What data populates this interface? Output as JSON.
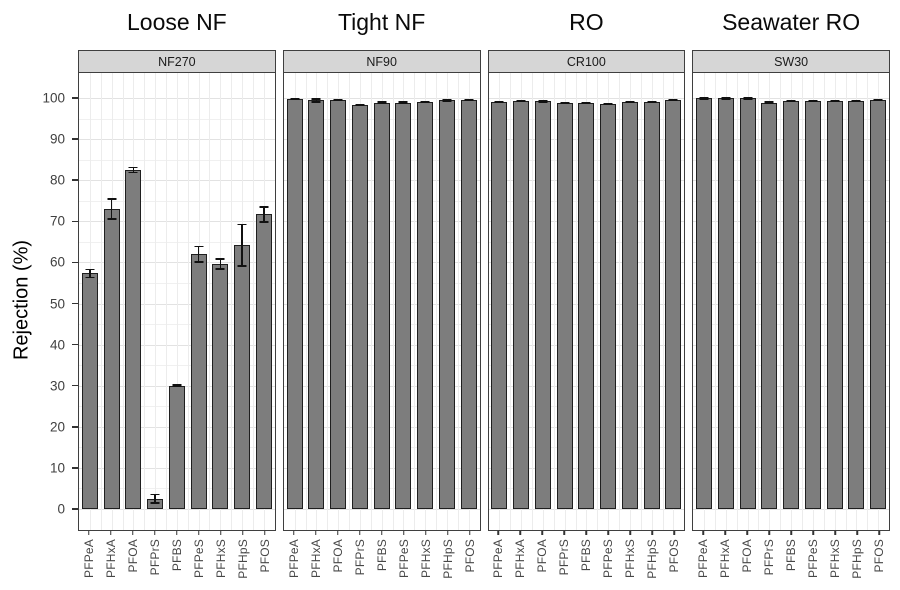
{
  "figure": {
    "y_axis_label": "Rejection (%)",
    "colors": {
      "bar_fill": "#7d7d7d",
      "bar_stroke": "#1f1f1f",
      "strip_bg": "#d6d6d6",
      "panel_border": "#3f3f3f",
      "grid_major": "#e2e2e2",
      "grid_minor": "#f0f0f0"
    }
  },
  "chart_data": {
    "type": "bar",
    "title": "",
    "xlabel": "",
    "ylabel": "Rejection (%)",
    "ylim": [
      0,
      100
    ],
    "yticks": [
      0,
      10,
      20,
      30,
      40,
      50,
      60,
      70,
      80,
      90,
      100
    ],
    "grid": "major+minor",
    "legend": "none",
    "error_bars": true,
    "categories": [
      "PFPeA",
      "PFHxA",
      "PFOA",
      "PFPrS",
      "PFBS",
      "PFPeS",
      "PFHxS",
      "PFHpS",
      "PFOS"
    ],
    "panels": [
      {
        "title": "Loose NF",
        "strip": "NF270",
        "values": [
          57.3,
          73.0,
          82.5,
          2.5,
          30.0,
          62.0,
          59.6,
          64.2,
          71.7
        ],
        "errors": [
          1.2,
          2.6,
          0.8,
          1.2,
          0.4,
          2.1,
          1.4,
          5.2,
          2.0
        ]
      },
      {
        "title": "Tight NF",
        "strip": "NF90",
        "values": [
          99.8,
          99.4,
          99.5,
          98.3,
          98.9,
          98.9,
          99.1,
          99.4,
          99.5
        ],
        "errors": [
          0.1,
          0.5,
          0.3,
          0.3,
          0.1,
          0.1,
          0.1,
          0.3,
          0.1
        ]
      },
      {
        "title": "RO",
        "strip": "CR100",
        "values": [
          99.0,
          99.2,
          99.2,
          98.7,
          98.8,
          98.5,
          99.0,
          99.1,
          99.6
        ],
        "errors": [
          0.2,
          0.1,
          0.4,
          0.1,
          0.2,
          0.3,
          0.1,
          0.1,
          0.1
        ]
      },
      {
        "title": "Seawater RO",
        "strip": "SW30",
        "values": [
          99.9,
          99.9,
          99.9,
          98.9,
          99.3,
          99.2,
          99.2,
          99.3,
          99.6
        ],
        "errors": [
          0.1,
          0.1,
          0.1,
          0.1,
          0.1,
          0.1,
          0.1,
          0.1,
          0.1
        ]
      }
    ]
  }
}
